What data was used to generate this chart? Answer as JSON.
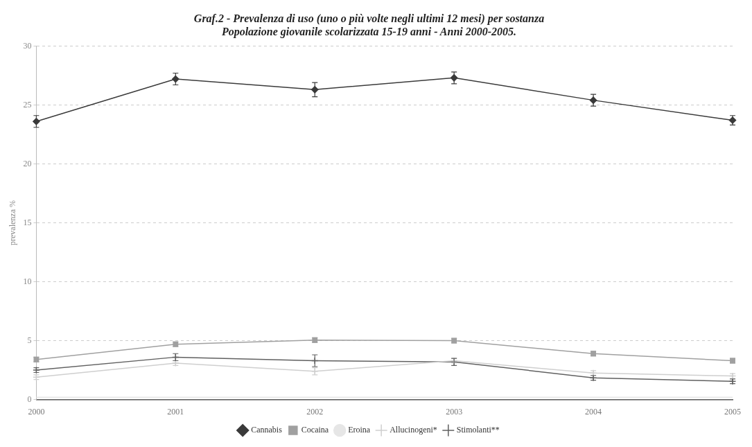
{
  "chart_data": {
    "type": "line",
    "title": "Graf.2 - Prevalenza di uso (uno o più volte negli ultimi 12 mesi) per sostanza",
    "subtitle": "Popolazione giovanile scolarizzata 15-19 anni - Anni 2000-2005.",
    "ylabel": "prevalenza %",
    "categories": [
      "2000",
      "2001",
      "2002",
      "2003",
      "2004",
      "2005"
    ],
    "ylim": [
      0,
      30
    ],
    "yticks": [
      0,
      5,
      10,
      15,
      20,
      25,
      30
    ],
    "grid": "y",
    "legend": "bottom",
    "series": [
      {
        "name": "Cannabis",
        "color": "#3a3a3a",
        "marker": "diamond",
        "values": [
          23.6,
          27.2,
          26.3,
          27.3,
          25.4,
          23.7
        ],
        "errors": [
          0.5,
          0.5,
          0.6,
          0.5,
          0.5,
          0.4
        ]
      },
      {
        "name": "Cocaina",
        "color": "#a0a0a0",
        "marker": "square",
        "values": [
          3.4,
          4.7,
          5.05,
          5.0,
          3.9,
          3.3
        ],
        "errors": [
          0.2,
          0.2,
          0.2,
          0.2,
          0.2,
          0.2
        ]
      },
      {
        "name": "Eroina",
        "color": "#e6e6e6",
        "marker": "none",
        "values": [
          0.2,
          0.2,
          0.2,
          0.2,
          0.2,
          0.2
        ]
      },
      {
        "name": "Allucinogeni*",
        "color": "#cfcfcf",
        "marker": "cross",
        "values": [
          1.9,
          3.1,
          2.4,
          3.3,
          2.25,
          2.0
        ],
        "errors": [
          0.2,
          0.2,
          0.3,
          0.2,
          0.2,
          0.2
        ]
      },
      {
        "name": "Stimolanti**",
        "color": "#606060",
        "marker": "cross",
        "values": [
          2.5,
          3.6,
          3.3,
          3.2,
          1.85,
          1.55
        ],
        "errors": [
          0.2,
          0.3,
          0.5,
          0.3,
          0.2,
          0.2
        ]
      }
    ]
  }
}
